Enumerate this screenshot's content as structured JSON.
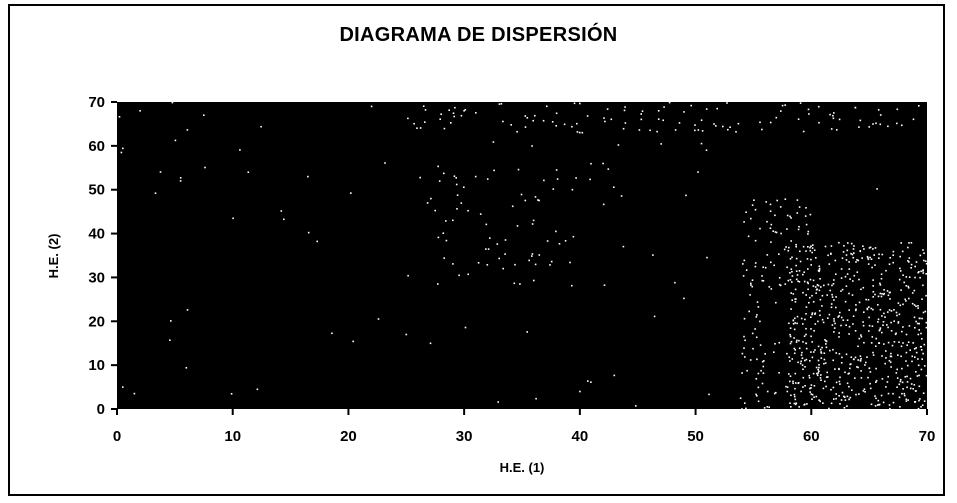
{
  "chart_data": {
    "type": "scatter",
    "title": "DIAGRAMA DE DISPERSIÓN",
    "xlabel": "H.E. (1)",
    "ylabel": "H.E. (2)",
    "xlim": [
      0,
      70
    ],
    "ylim": [
      0,
      70
    ],
    "x_ticks": [
      "0",
      "10",
      "20",
      "30",
      "40",
      "50",
      "60",
      "70"
    ],
    "y_ticks": [
      "0",
      "10",
      "20",
      "30",
      "40",
      "50",
      "60",
      "70"
    ],
    "grid": false,
    "legend": "none",
    "colors": {
      "plot_background": "#000000",
      "points": "#ffffff",
      "frame": "#000000"
    },
    "clusters": [
      {
        "x_range": [
          58,
          70
        ],
        "y_range": [
          0,
          38
        ],
        "count": 620
      },
      {
        "x_range": [
          54,
          60
        ],
        "y_range": [
          0,
          48
        ],
        "count": 150
      },
      {
        "x_range": [
          27,
          44
        ],
        "y_range": [
          28,
          56
        ],
        "count": 70
      },
      {
        "x_range": [
          25,
          70
        ],
        "y_range": [
          63,
          70
        ],
        "count": 110
      },
      {
        "x_range": [
          0,
          70
        ],
        "y_range": [
          0,
          70
        ],
        "count": 90
      }
    ],
    "samples": [
      {
        "x": 0.5,
        "y": 5
      },
      {
        "x": 1.5,
        "y": 3.5
      },
      {
        "x": 2,
        "y": 68
      },
      {
        "x": 5.5,
        "y": 52
      },
      {
        "x": 7.5,
        "y": 67
      },
      {
        "x": 16.5,
        "y": 53
      },
      {
        "x": 22,
        "y": 69
      },
      {
        "x": 30,
        "y": 68
      },
      {
        "x": 31,
        "y": 53
      },
      {
        "x": 36,
        "y": 43
      },
      {
        "x": 40,
        "y": 4
      },
      {
        "x": 54,
        "y": 0
      }
    ]
  }
}
